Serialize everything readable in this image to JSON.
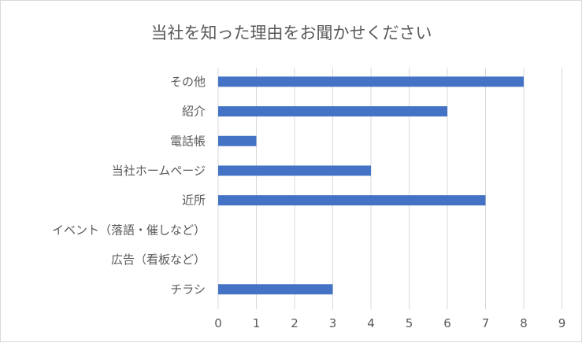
{
  "chart_data": {
    "type": "bar",
    "orientation": "horizontal",
    "title": "当社を知った理由をお聞かせください",
    "categories": [
      "その他",
      "紹介",
      "電話帳",
      "当社ホームページ",
      "近所",
      "イベント（落語・催しなど）",
      "広告（看板など）",
      "チラシ"
    ],
    "values": [
      8,
      6,
      1,
      4,
      7,
      0,
      0,
      3
    ],
    "xlim": [
      0,
      9
    ],
    "xticks": [
      "0",
      "1",
      "2",
      "3",
      "4",
      "5",
      "6",
      "7",
      "8",
      "9"
    ],
    "grid": true,
    "legend": "none",
    "bar_color": "#4472c4"
  }
}
